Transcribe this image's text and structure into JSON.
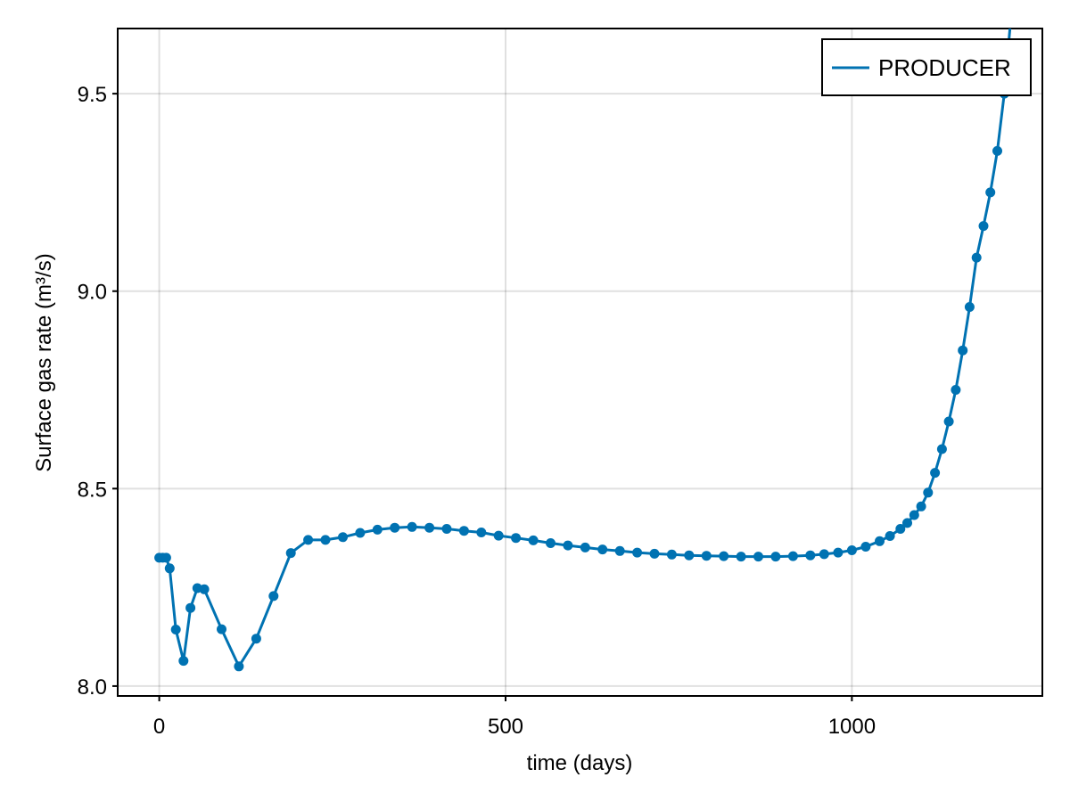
{
  "chart_data": {
    "type": "line",
    "xlabel": "time (days)",
    "ylabel": "Surface gas rate (m³/s)",
    "xlim": [
      -60,
      1275
    ],
    "ylim": [
      7.975,
      9.665
    ],
    "x_ticks": [
      0,
      500,
      1000
    ],
    "y_ticks": [
      8.0,
      8.5,
      9.0,
      9.5
    ],
    "x_tick_labels": [
      "0",
      "500",
      "1000"
    ],
    "y_tick_labels": [
      "8.0",
      "8.5",
      "9.0",
      "9.5"
    ],
    "grid": true,
    "legend_position": "top-right",
    "line_color": "#0072b2",
    "series": [
      {
        "name": "PRODUCER",
        "markers": true,
        "x": [
          0,
          5,
          10,
          15,
          24,
          35,
          45,
          55,
          65,
          90,
          115,
          140,
          165,
          190,
          215,
          240,
          265,
          290,
          315,
          340,
          365,
          390,
          415,
          440,
          465,
          490,
          515,
          540,
          565,
          590,
          615,
          640,
          665,
          690,
          715,
          740,
          765,
          790,
          815,
          840,
          865,
          890,
          915,
          940,
          960,
          980,
          1000,
          1020,
          1040,
          1055,
          1070,
          1080,
          1090,
          1100,
          1110,
          1120,
          1130,
          1140,
          1150,
          1160,
          1170,
          1180,
          1190,
          1200,
          1210,
          1220,
          1230
        ],
        "y": [
          8.325,
          8.325,
          8.325,
          8.298,
          8.143,
          8.064,
          8.198,
          8.248,
          8.245,
          8.144,
          8.05,
          8.12,
          8.228,
          8.337,
          8.37,
          8.37,
          8.377,
          8.388,
          8.396,
          8.401,
          8.403,
          8.401,
          8.398,
          8.393,
          8.389,
          8.381,
          8.375,
          8.369,
          8.362,
          8.356,
          8.351,
          8.346,
          8.342,
          8.338,
          8.335,
          8.333,
          8.331,
          8.33,
          8.329,
          8.328,
          8.328,
          8.328,
          8.329,
          8.331,
          8.334,
          8.338,
          8.344,
          8.353,
          8.367,
          8.38,
          8.398,
          8.413,
          8.433,
          8.455,
          8.49,
          8.54,
          8.6,
          8.67,
          8.75,
          8.85,
          8.96,
          9.085,
          9.165,
          9.25,
          9.355,
          9.5,
          9.7
        ]
      }
    ]
  }
}
